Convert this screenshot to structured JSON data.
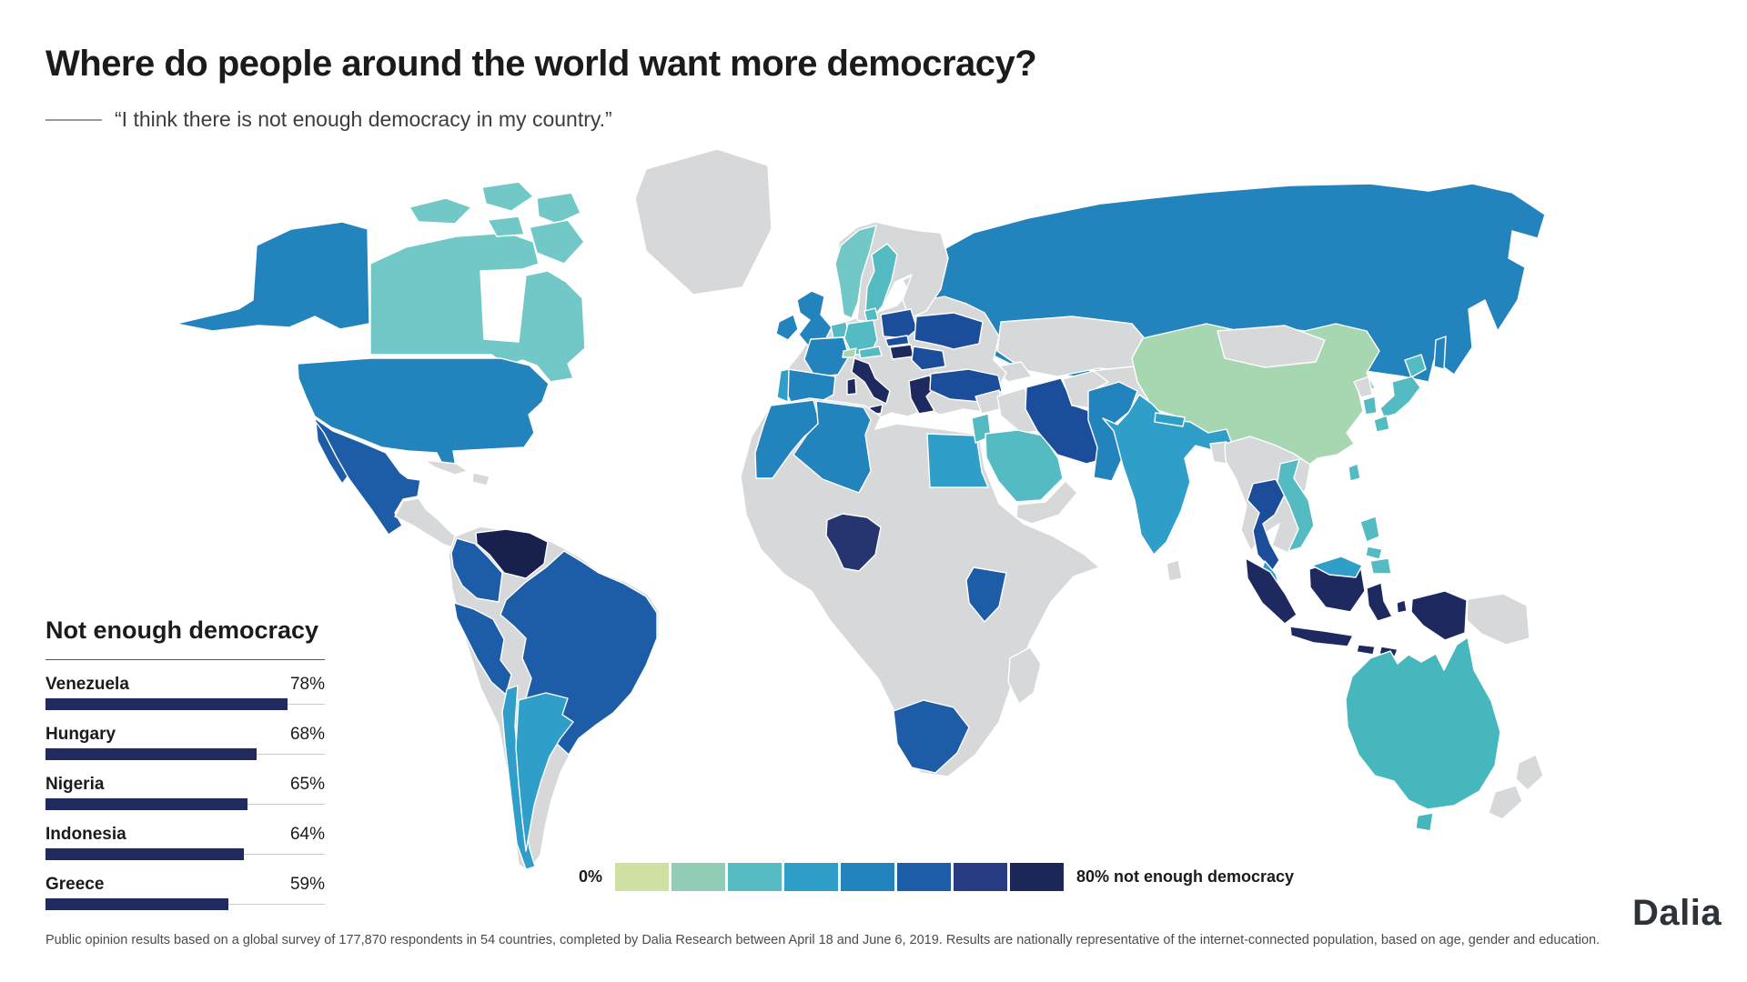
{
  "header": {
    "title": "Where do people around the world want more democracy?",
    "subtitle_quote": "“I think there is not enough democracy in my country.”"
  },
  "ranking": {
    "heading": "Not enough democracy",
    "items": [
      {
        "country": "Venezuela",
        "value": "78%",
        "pct": 78
      },
      {
        "country": "Hungary",
        "value": "68%",
        "pct": 68
      },
      {
        "country": "Nigeria",
        "value": "65%",
        "pct": 65
      },
      {
        "country": "Indonesia",
        "value": "64%",
        "pct": 64
      },
      {
        "country": "Greece",
        "value": "59%",
        "pct": 59
      }
    ]
  },
  "legend": {
    "min_label": "0%",
    "max_label": "80% not enough democracy",
    "colors": [
      "#cfe0a2",
      "#92ceb5",
      "#57bbc2",
      "#2f9ec8",
      "#2383bd",
      "#1d5ca7",
      "#273c82",
      "#1d2757"
    ]
  },
  "footer": {
    "note": "Public opinion results based on a global survey of 177,870 respondents in 54 countries, completed by Dalia Research between April 18 and June 6, 2019. Results are nationally representative of the internet-connected population, based on age, gender and education.",
    "brand": "Dalia"
  },
  "map": {
    "palette": {
      "green": "#a6d7b0",
      "teal_light": "#72c8c6",
      "teal": "#53bbc1",
      "teal_aus": "#46b8bd",
      "b4": "#2f9ec8",
      "b5": "#2383bd",
      "b6": "#1d5ca7",
      "b65": "#1c4d9a",
      "navy": "#24356f",
      "navy2": "#1e2a5f",
      "navy3": "#18204d",
      "no_data": "#d6d8da"
    },
    "countries": [
      {
        "id": "canada",
        "name": "Canada",
        "color": "teal_light"
      },
      {
        "id": "alaska",
        "name": "United States (Alaska)",
        "color": "b5"
      },
      {
        "id": "usa",
        "name": "United States",
        "color": "b5"
      },
      {
        "id": "mexico",
        "name": "Mexico",
        "color": "b6"
      },
      {
        "id": "venezuela",
        "name": "Venezuela",
        "color": "navy3"
      },
      {
        "id": "colombia",
        "name": "Colombia",
        "color": "b6"
      },
      {
        "id": "peru",
        "name": "Peru",
        "color": "b6"
      },
      {
        "id": "brazil",
        "name": "Brazil",
        "color": "b6"
      },
      {
        "id": "chile",
        "name": "Chile",
        "color": "b4"
      },
      {
        "id": "argentina",
        "name": "Argentina",
        "color": "b4"
      },
      {
        "id": "uk",
        "name": "United Kingdom",
        "color": "b5"
      },
      {
        "id": "ireland",
        "name": "Ireland",
        "color": "b5"
      },
      {
        "id": "norway",
        "name": "Norway",
        "color": "teal_light"
      },
      {
        "id": "sweden",
        "name": "Sweden",
        "color": "teal"
      },
      {
        "id": "denmark",
        "name": "Denmark",
        "color": "teal"
      },
      {
        "id": "benelux",
        "name": "Netherlands / Belgium",
        "color": "teal"
      },
      {
        "id": "germany",
        "name": "Germany",
        "color": "teal"
      },
      {
        "id": "france",
        "name": "France",
        "color": "b5"
      },
      {
        "id": "spain",
        "name": "Spain",
        "color": "b5"
      },
      {
        "id": "portugal",
        "name": "Portugal",
        "color": "b4"
      },
      {
        "id": "italy",
        "name": "Italy",
        "color": "navy2"
      },
      {
        "id": "switzerland",
        "name": "Switzerland",
        "color": "green"
      },
      {
        "id": "austria",
        "name": "Austria",
        "color": "teal"
      },
      {
        "id": "poland",
        "name": "Poland",
        "color": "b65"
      },
      {
        "id": "slovakia",
        "name": "Slovakia",
        "color": "b65"
      },
      {
        "id": "hungary",
        "name": "Hungary",
        "color": "navy2"
      },
      {
        "id": "romania",
        "name": "Romania",
        "color": "b65"
      },
      {
        "id": "ukraine",
        "name": "Ukraine",
        "color": "b65"
      },
      {
        "id": "greece",
        "name": "Greece",
        "color": "navy2"
      },
      {
        "id": "turkey",
        "name": "Turkey",
        "color": "b65"
      },
      {
        "id": "russia",
        "name": "Russia",
        "color": "b5"
      },
      {
        "id": "china",
        "name": "China",
        "color": "green"
      },
      {
        "id": "japan",
        "name": "Japan",
        "color": "teal"
      },
      {
        "id": "south_korea",
        "name": "South Korea",
        "color": "teal"
      },
      {
        "id": "taiwan",
        "name": "Taiwan",
        "color": "teal"
      },
      {
        "id": "pakistan",
        "name": "Pakistan",
        "color": "b5"
      },
      {
        "id": "india",
        "name": "India",
        "color": "b4"
      },
      {
        "id": "nepal",
        "name": "Nepal",
        "color": "b4"
      },
      {
        "id": "iran",
        "name": "Iran",
        "color": "b65"
      },
      {
        "id": "saudi_arabia",
        "name": "Saudi Arabia",
        "color": "teal"
      },
      {
        "id": "israel_jordan",
        "name": "Israel / Jordan",
        "color": "teal"
      },
      {
        "id": "egypt",
        "name": "Egypt",
        "color": "b4"
      },
      {
        "id": "morocco",
        "name": "Morocco",
        "color": "b5"
      },
      {
        "id": "algeria",
        "name": "Algeria",
        "color": "b5"
      },
      {
        "id": "nigeria",
        "name": "Nigeria",
        "color": "navy"
      },
      {
        "id": "kenya",
        "name": "Kenya",
        "color": "b6"
      },
      {
        "id": "south_africa",
        "name": "South Africa",
        "color": "b6"
      },
      {
        "id": "thailand",
        "name": "Thailand",
        "color": "b65"
      },
      {
        "id": "vietnam",
        "name": "Vietnam",
        "color": "teal"
      },
      {
        "id": "malaysia",
        "name": "Malaysia",
        "color": "b4"
      },
      {
        "id": "indonesia",
        "name": "Indonesia",
        "color": "navy2"
      },
      {
        "id": "philippines",
        "name": "Philippines",
        "color": "teal"
      },
      {
        "id": "australia",
        "name": "Australia",
        "color": "teal_aus"
      }
    ]
  },
  "chart_data": [
    {
      "type": "heatmap",
      "subtype": "world-choropleth",
      "title": "Where do people around the world want more democracy?",
      "question": "I think there is not enough democracy in my country.",
      "scale": {
        "min": 0,
        "max": 80,
        "unit": "% not enough democracy",
        "colors": [
          "#cfe0a2",
          "#92ceb5",
          "#57bbc2",
          "#2f9ec8",
          "#2383bd",
          "#1d5ca7",
          "#273c82",
          "#1d2757"
        ]
      },
      "no_data_color": "#d6d8da",
      "labeled_values": [
        {
          "country": "Venezuela",
          "value": 78
        },
        {
          "country": "Hungary",
          "value": 68
        },
        {
          "country": "Nigeria",
          "value": 65
        },
        {
          "country": "Indonesia",
          "value": 64
        },
        {
          "country": "Greece",
          "value": 59
        }
      ]
    },
    {
      "type": "bar",
      "title": "Not enough democracy",
      "categories": [
        "Venezuela",
        "Hungary",
        "Nigeria",
        "Indonesia",
        "Greece"
      ],
      "values": [
        78,
        68,
        65,
        64,
        59
      ],
      "unit": "%",
      "xlim": [
        0,
        90
      ],
      "bar_color": "#212a5e",
      "orientation": "horizontal"
    }
  ]
}
